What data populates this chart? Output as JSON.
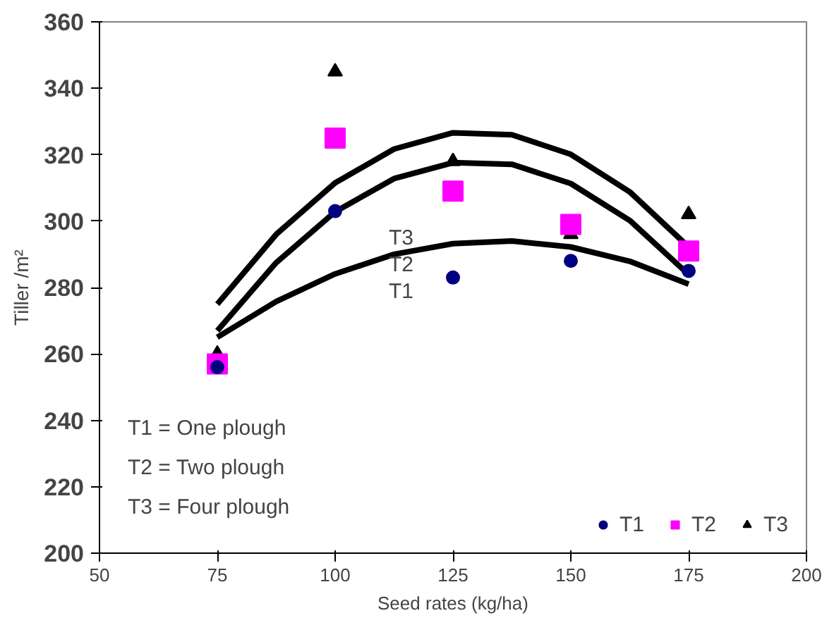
{
  "chart_data": {
    "type": "scatter",
    "xlabel": "Seed rates (kg/ha)",
    "ylabel": "Tiller /m²",
    "xlim": [
      50,
      200
    ],
    "xticks": [
      50,
      75,
      100,
      125,
      150,
      175,
      200
    ],
    "ylim": [
      200,
      360
    ],
    "yticks": [
      200,
      220,
      240,
      260,
      280,
      300,
      320,
      340,
      360
    ],
    "grid": false,
    "legend": "bottom right",
    "series": [
      {
        "name": "T1",
        "marker": "circle",
        "color": "#000080",
        "x": [
          75,
          100,
          125,
          150,
          175
        ],
        "values": [
          256,
          303,
          283,
          288,
          285
        ]
      },
      {
        "name": "T2",
        "marker": "square",
        "color": "#ff00ff",
        "x": [
          75,
          100,
          125,
          150,
          175
        ],
        "values": [
          257,
          325,
          309,
          299,
          291
        ]
      },
      {
        "name": "T3",
        "marker": "triangle",
        "color": "#000000",
        "x": [
          75,
          100,
          125,
          150,
          175
        ],
        "values": [
          260,
          345,
          318,
          296,
          302
        ]
      },
      {
        "type": "line",
        "color": "#000000",
        "x": [
          75,
          87.5,
          100,
          112.5,
          125,
          137.5,
          150,
          162.5,
          175
        ],
        "values": [
          265,
          275.8,
          284.1,
          290,
          293.2,
          294,
          292.2,
          287.9,
          281
        ]
      },
      {
        "type": "line",
        "color": "#000000",
        "x": [
          75,
          87.5,
          100,
          112.5,
          125,
          137.5,
          150,
          162.5,
          175
        ],
        "values": [
          267,
          287.5,
          302.8,
          312.8,
          317.6,
          317.1,
          311.3,
          300.2,
          283.9
        ]
      },
      {
        "type": "line",
        "color": "#000000",
        "x": [
          75,
          87.5,
          100,
          112.5,
          125,
          137.5,
          150,
          162.5,
          175
        ],
        "values": [
          275,
          296,
          311.5,
          321.7,
          326.6,
          326,
          320.1,
          308.8,
          292.2
        ]
      }
    ],
    "annotations": [
      "T3",
      "T2",
      "T1",
      "T1 = One plough",
      "T2 = Two plough",
      "T3 = Four plough"
    ]
  }
}
